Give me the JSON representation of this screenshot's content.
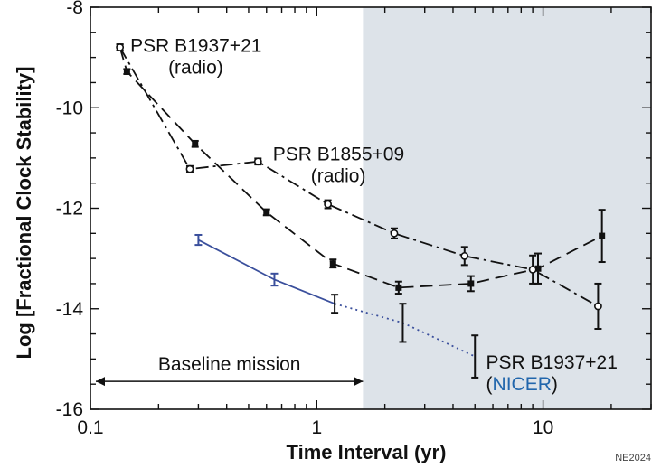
{
  "chart_data": {
    "type": "line",
    "xscale": "log",
    "xlim": [
      0.1,
      30
    ],
    "ylim": [
      -16,
      -8
    ],
    "xlabel": "Time Interval (yr)",
    "ylabel": "Log [Fractional Clock Stability]",
    "xticks": [
      0.1,
      1,
      10
    ],
    "xtick_labels": [
      "0.1",
      "1",
      "10"
    ],
    "yticks": [
      -8,
      -10,
      -12,
      -14,
      -16
    ],
    "ytick_labels": [
      "-8",
      "-10",
      "-12",
      "-14",
      "-16"
    ],
    "shaded_region": {
      "x_from": 1.6,
      "x_to": 30,
      "color": "#dde3e9"
    },
    "baseline_span": {
      "x_from": 0.1,
      "x_to": 1.6,
      "y": -15.3,
      "label": "Baseline mission"
    },
    "series": [
      {
        "key": "b1937_radio",
        "style": "dashed",
        "marker": "filled-square",
        "color": "#111111",
        "points": [
          {
            "x": 0.135,
            "y": -8.8,
            "err": 0.06
          },
          {
            "x": 0.145,
            "y": -9.28,
            "err": 0.05
          },
          {
            "x": 0.29,
            "y": -10.72,
            "err": 0.06
          },
          {
            "x": 0.6,
            "y": -12.08,
            "err": 0.06
          },
          {
            "x": 1.18,
            "y": -13.1,
            "err": 0.08
          },
          {
            "x": 2.3,
            "y": -13.58,
            "err": 0.12
          },
          {
            "x": 4.8,
            "y": -13.5,
            "err": 0.15
          },
          {
            "x": 9.5,
            "y": -13.2,
            "err": 0.3
          },
          {
            "x": 18.2,
            "y": -12.55,
            "err": 0.52
          }
        ]
      },
      {
        "key": "b1855_radio",
        "style": "dash-dot",
        "marker": "open-circle",
        "color": "#111111",
        "points": [
          {
            "x": 0.135,
            "y": -8.8,
            "err": 0.06
          },
          {
            "x": 0.275,
            "y": -11.22,
            "err": 0.06
          },
          {
            "x": 0.55,
            "y": -11.07,
            "err": 0.06
          },
          {
            "x": 1.12,
            "y": -11.92,
            "err": 0.08
          },
          {
            "x": 2.2,
            "y": -12.5,
            "err": 0.1
          },
          {
            "x": 4.5,
            "y": -12.95,
            "err": 0.18
          },
          {
            "x": 9.0,
            "y": -13.22,
            "err": 0.28
          },
          {
            "x": 17.5,
            "y": -13.95,
            "err": 0.45
          }
        ]
      },
      {
        "key": "b1937_nicer",
        "style": "solid",
        "style_extrapolated": "dotted",
        "marker": "error-bar",
        "color": "#3a4f9c",
        "points": [
          {
            "x": 0.3,
            "y": -12.63,
            "err": 0.1
          },
          {
            "x": 0.65,
            "y": -13.42,
            "err": 0.12
          },
          {
            "x": 1.2,
            "y": -13.9,
            "err": 0.18
          },
          {
            "x": 2.4,
            "y": -14.28,
            "err": 0.38
          },
          {
            "x": 5.0,
            "y": -14.95,
            "err": 0.42
          }
        ]
      }
    ],
    "annotations": [
      {
        "key": "a1",
        "lines": [
          "PSR B1937+21",
          "(radio)"
        ],
        "color": "#111111",
        "accent": null,
        "at": {
          "x": 0.15,
          "y": -8.75
        }
      },
      {
        "key": "a2",
        "lines": [
          "PSR B1855+09",
          "(radio)"
        ],
        "color": "#111111",
        "accent": null,
        "at": {
          "x": 0.64,
          "y": -10.9
        }
      },
      {
        "key": "a3",
        "lines": [
          "PSR B1937+21",
          "(NICER)"
        ],
        "color": "#111111",
        "accent": "#2166ac",
        "at": {
          "x": 5.6,
          "y": -15.05
        }
      }
    ],
    "credit": "NE2024"
  }
}
